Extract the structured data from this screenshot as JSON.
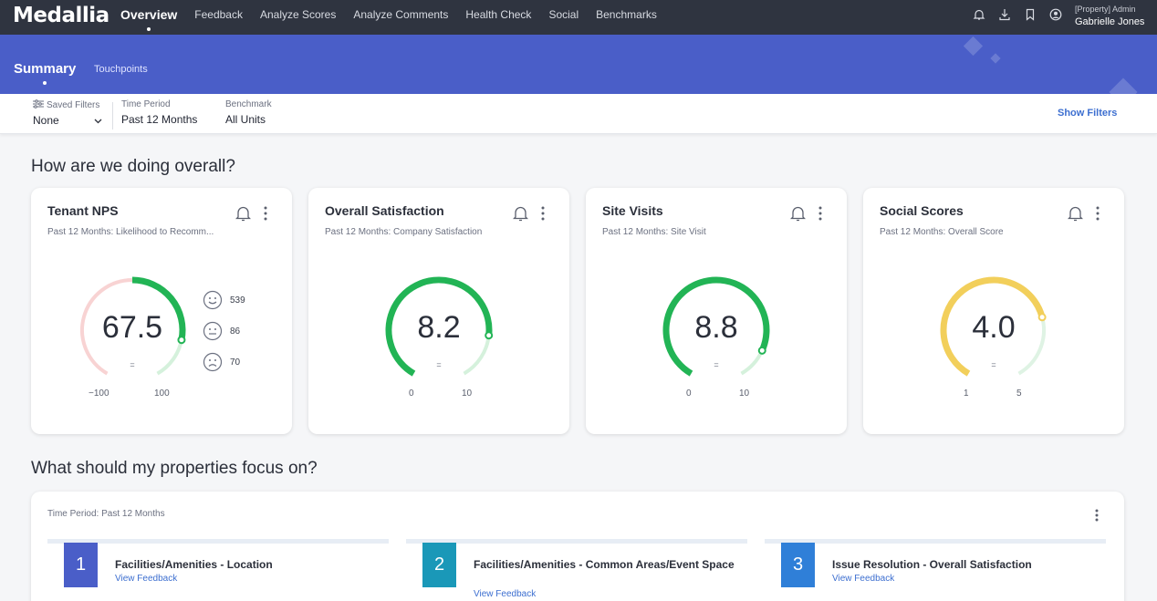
{
  "app": {
    "logo": "Medallia",
    "nav": [
      "Overview",
      "Feedback",
      "Analyze Scores",
      "Analyze Comments",
      "Health Check",
      "Social",
      "Benchmarks"
    ],
    "user_role": "[Property] Admin",
    "user_name": "Gabrielle Jones"
  },
  "subnav": {
    "active": "Summary",
    "other": "Touchpoints"
  },
  "filters": {
    "saved_label": "Saved Filters",
    "saved_value": "None",
    "period_label": "Time Period",
    "period_value": "Past 12 Months",
    "benchmark_label": "Benchmark",
    "benchmark_value": "All Units",
    "show_filters": "Show Filters"
  },
  "overall": {
    "heading": "How are we doing overall?",
    "cards": [
      {
        "title": "Tenant NPS",
        "subtitle": "Past 12 Months: Likelihood to Recomm...",
        "value": "67.5",
        "eq": "=",
        "min": "−100",
        "max": "100",
        "fraction": 0.8375
      },
      {
        "title": "Overall Satisfaction",
        "subtitle": "Past 12 Months: Company Satisfaction",
        "value": "8.2",
        "eq": "=",
        "min": "0",
        "max": "10",
        "fraction": 0.82
      },
      {
        "title": "Site Visits",
        "subtitle": "Past 12 Months: Site Visit",
        "value": "8.8",
        "eq": "=",
        "min": "0",
        "max": "10",
        "fraction": 0.88
      },
      {
        "title": "Social Scores",
        "subtitle": "Past 12 Months: Overall Score",
        "value": "4.0",
        "eq": "=",
        "min": "1",
        "max": "5",
        "fraction": 0.75
      }
    ],
    "nps_breakdown": {
      "promoters": "539",
      "passives": "86",
      "detractors": "70"
    }
  },
  "focus": {
    "heading": "What should my properties focus on?",
    "period": "Time Period: Past 12 Months",
    "items": [
      {
        "rank": "1",
        "name": "Facilities/Amenities - Location",
        "link": "View Feedback",
        "color": "#4a5ec8"
      },
      {
        "rank": "2",
        "name": "Facilities/Amenities - Common Areas/Event Space",
        "link": "View Feedback",
        "color": "#1a98b8"
      },
      {
        "rank": "3",
        "name": "Issue Resolution - Overall Satisfaction",
        "link": "View Feedback",
        "color": "#2f7fd8"
      }
    ]
  },
  "colors": {
    "nav": "#2f3440",
    "header": "#4a5ec8",
    "green": "#22b455",
    "yellow": "#f2cf5b",
    "link": "#3d6fd0"
  }
}
